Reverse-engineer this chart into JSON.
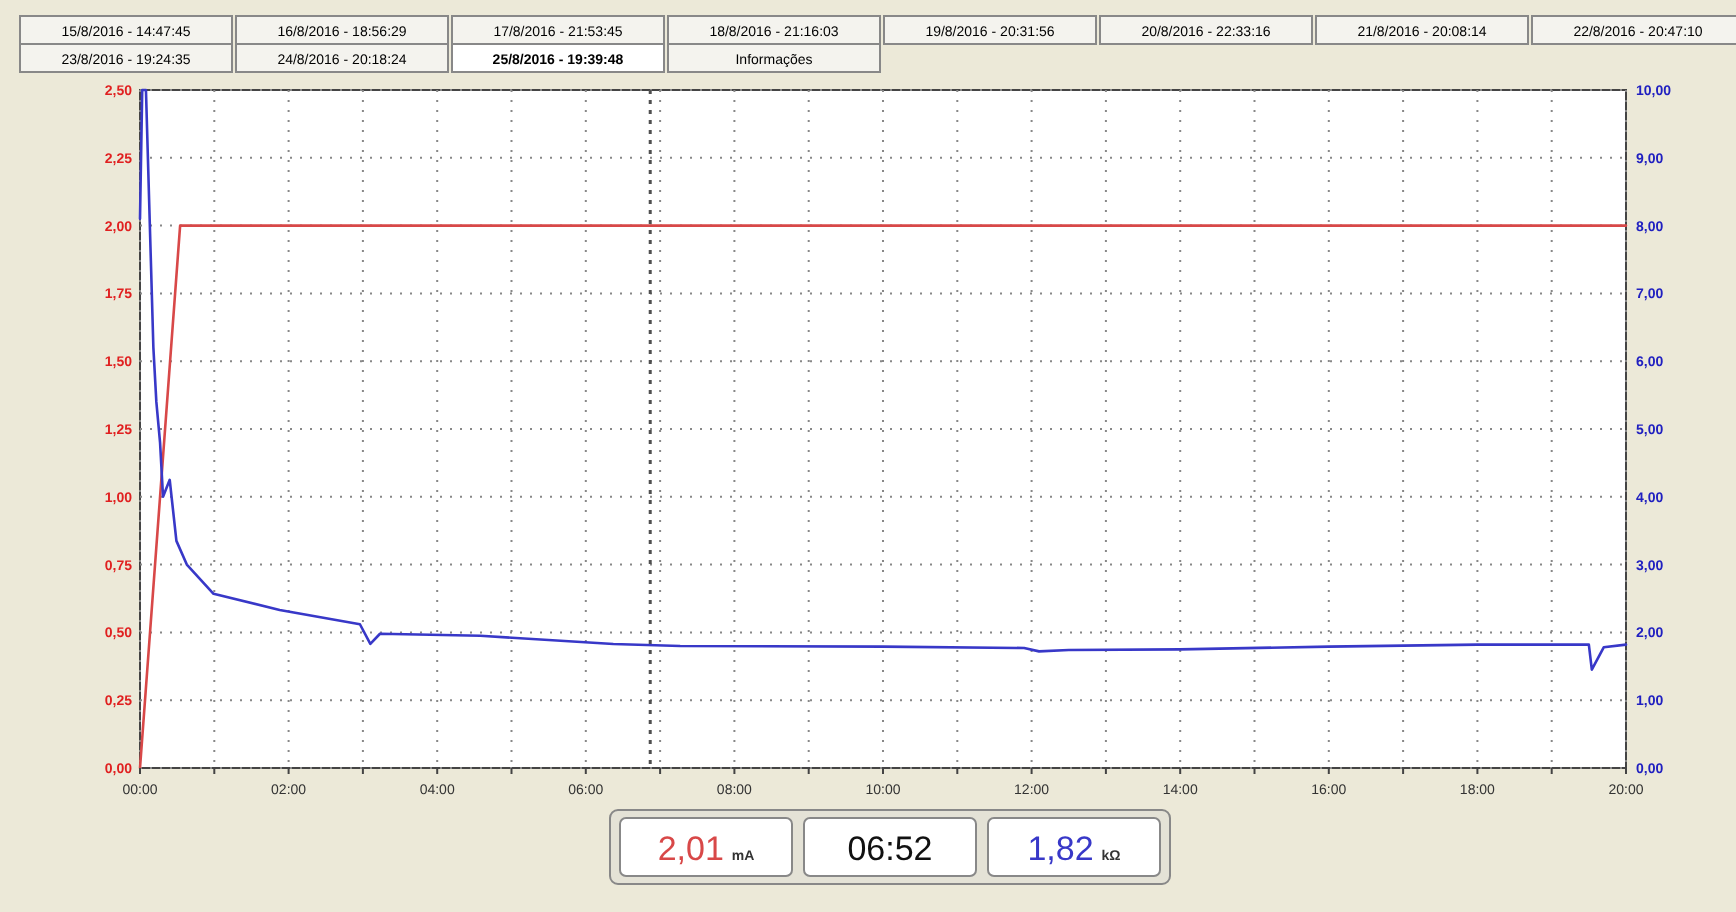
{
  "chart_data": {
    "type": "line",
    "grid": true,
    "marker": "none",
    "line_style": "solid",
    "xlim": [
      0,
      20
    ],
    "xticks": [
      {
        "value": 0,
        "label": "00:00"
      },
      {
        "value": 1,
        "label": null
      },
      {
        "value": 2,
        "label": "02:00"
      },
      {
        "value": 3,
        "label": null
      },
      {
        "value": 4,
        "label": "04:00"
      },
      {
        "value": 5,
        "label": null
      },
      {
        "value": 6,
        "label": "06:00"
      },
      {
        "value": 7,
        "label": null
      },
      {
        "value": 8,
        "label": "08:00"
      },
      {
        "value": 9,
        "label": null
      },
      {
        "value": 10,
        "label": "10:00"
      },
      {
        "value": 11,
        "label": null
      },
      {
        "value": 12,
        "label": "12:00"
      },
      {
        "value": 13,
        "label": null
      },
      {
        "value": 14,
        "label": "14:00"
      },
      {
        "value": 15,
        "label": null
      },
      {
        "value": 16,
        "label": "16:00"
      },
      {
        "value": 17,
        "label": null
      },
      {
        "value": 18,
        "label": "18:00"
      },
      {
        "value": 19,
        "label": null
      },
      {
        "value": 20,
        "label": "20:00"
      }
    ],
    "ylim": [
      0,
      2.5
    ],
    "yticks": [
      {
        "value": 0,
        "label": "0,00"
      },
      {
        "value": 0.25,
        "label": "0,25"
      },
      {
        "value": 0.5,
        "label": "0,50"
      },
      {
        "value": 0.75,
        "label": "0,75"
      },
      {
        "value": 1,
        "label": "1,00"
      },
      {
        "value": 1.25,
        "label": "1,25"
      },
      {
        "value": 1.5,
        "label": "1,50"
      },
      {
        "value": 1.75,
        "label": "1,75"
      },
      {
        "value": 2,
        "label": "2,00"
      },
      {
        "value": 2.25,
        "label": "2,25"
      },
      {
        "value": 2.5,
        "label": "2,50"
      }
    ],
    "y2lim": [
      0,
      10
    ],
    "y2ticks": [
      {
        "value": 0,
        "label": "0,00"
      },
      {
        "value": 1,
        "label": "1,00"
      },
      {
        "value": 2,
        "label": "2,00"
      },
      {
        "value": 3,
        "label": "3,00"
      },
      {
        "value": 4,
        "label": "4,00"
      },
      {
        "value": 5,
        "label": "5,00"
      },
      {
        "value": 6,
        "label": "6,00"
      },
      {
        "value": 7,
        "label": "7,00"
      },
      {
        "value": 8,
        "label": "8,00"
      },
      {
        "value": 9,
        "label": "9,00"
      },
      {
        "value": 10,
        "label": "10,00"
      }
    ],
    "series": [
      {
        "color": "#d84848",
        "x": [
          0,
          0.54,
          20
        ],
        "values": [
          0,
          2.0,
          2.0
        ]
      },
      {
        "color": "#3838c8",
        "axis": "y2",
        "x": [
          0,
          0.03,
          0.08,
          0.18,
          0.22,
          0.27,
          0.31,
          0.4,
          0.49,
          0.63,
          0.99,
          1.88,
          2.96,
          3.1,
          3.23,
          4.58,
          6.37,
          7.27,
          10,
          11.9,
          12.1,
          12.5,
          14,
          16,
          18,
          19.5,
          19.54,
          19.7,
          20
        ],
        "values": [
          8.1,
          10,
          10,
          6.2,
          5.4,
          4.8,
          4.0,
          4.25,
          3.35,
          3.0,
          2.57,
          2.33,
          2.12,
          1.83,
          1.98,
          1.95,
          1.83,
          1.8,
          1.79,
          1.77,
          1.72,
          1.74,
          1.75,
          1.79,
          1.82,
          1.82,
          1.45,
          1.78,
          1.82
        ]
      }
    ],
    "ref_lines": [
      {
        "axis": "x",
        "value": 6.867,
        "color": "#505050",
        "line_style": "dotted"
      }
    ],
    "annotations": [
      "15/8/2016 - 14:47:45",
      "16/8/2016 - 18:56:29",
      "17/8/2016 - 21:53:45",
      "18/8/2016 - 21:16:03",
      "19/8/2016 - 20:31:56",
      "20/8/2016 - 22:33:16",
      "21/8/2016 - 20:08:14",
      "22/8/2016 - 20:47:10",
      "23/8/2016 - 19:24:35",
      "24/8/2016 - 20:18:24",
      "25/8/2016 - 19:39:48",
      "Informações",
      "2,01 mA",
      "06:52",
      "1,82 kΩ"
    ]
  }
}
